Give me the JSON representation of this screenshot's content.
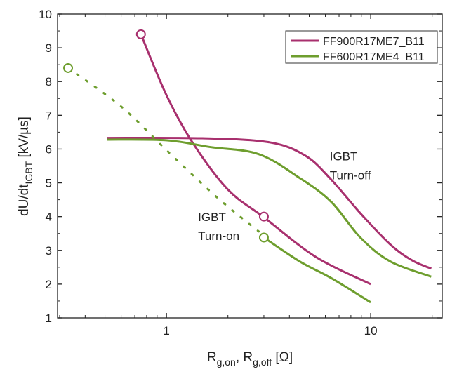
{
  "chart_data": {
    "type": "line",
    "xscale": "log",
    "xlim": [
      0.293,
      22.4
    ],
    "ylim": [
      1,
      10
    ],
    "xticks": [
      {
        "v": 1,
        "label": "1"
      },
      {
        "v": 10,
        "label": "10"
      }
    ],
    "yticks": [
      1,
      2,
      3,
      4,
      5,
      6,
      7,
      8,
      9,
      10
    ],
    "xlabel": {
      "main": "R",
      "sub1": "g,on",
      "sep": ", R",
      "sub2": "g,off",
      "unit": " [Ω]"
    },
    "ylabel": {
      "main": "dU/dt",
      "sub": "IGBT",
      "unit": " [kV/µs]"
    },
    "legend_position": "top-right",
    "legend": [
      {
        "name": "FF900R17ME7_B11",
        "color": "#A8306E"
      },
      {
        "name": "FF600R17ME4_B11",
        "color": "#6E9E2E"
      }
    ],
    "annotations": [
      {
        "line1": "IGBT",
        "line2": "Turn-off",
        "x": 7.5,
        "y": 5.5
      },
      {
        "line1": "IGBT",
        "line2": "Turn-on",
        "x": 1.7,
        "y": 3.7
      }
    ],
    "series": [
      {
        "name": "FF900R17ME7_B11 turn-on",
        "color": "#A8306E",
        "style": "solid",
        "marker_start": true,
        "marker_at": [
          3,
          4
        ],
        "points": [
          [
            0.75,
            9.4
          ],
          [
            1.0,
            7.6
          ],
          [
            1.34,
            6.2
          ],
          [
            2.0,
            4.8
          ],
          [
            3.0,
            3.98
          ],
          [
            5.4,
            2.8
          ],
          [
            10,
            2.0
          ]
        ]
      },
      {
        "name": "FF900R17ME7_B11 turn-off",
        "color": "#A8306E",
        "style": "solid",
        "points": [
          [
            0.51,
            6.33
          ],
          [
            1.5,
            6.32
          ],
          [
            3.2,
            6.2
          ],
          [
            4.8,
            5.8
          ],
          [
            6.4,
            5.1
          ],
          [
            8.9,
            4.1
          ],
          [
            12.5,
            3.17
          ],
          [
            16,
            2.7
          ],
          [
            19.8,
            2.46
          ]
        ]
      },
      {
        "name": "FF600R17ME4_B11 turn-off",
        "color": "#6E9E2E",
        "style": "solid",
        "points": [
          [
            0.51,
            6.28
          ],
          [
            1.0,
            6.26
          ],
          [
            1.64,
            6.06
          ],
          [
            2.83,
            5.85
          ],
          [
            4.5,
            5.14
          ],
          [
            6.4,
            4.44
          ],
          [
            8.9,
            3.38
          ],
          [
            12.5,
            2.67
          ],
          [
            19.8,
            2.22
          ]
        ]
      },
      {
        "name": "FF600R17ME4_B11 turn-on",
        "color": "#6E9E2E",
        "style": "solid",
        "marker_start": true,
        "points": [
          [
            3.0,
            3.38
          ],
          [
            4.5,
            2.67
          ],
          [
            6.4,
            2.18
          ],
          [
            10,
            1.46
          ]
        ]
      },
      {
        "name": "FF600R17ME4_B11 turn-on (extrapolated)",
        "color": "#6E9E2E",
        "style": "dotted",
        "marker_start": true,
        "points": [
          [
            0.33,
            8.4
          ],
          [
            0.6,
            7.26
          ],
          [
            1.02,
            5.92
          ],
          [
            1.76,
            4.58
          ],
          [
            2.83,
            3.56
          ]
        ]
      }
    ]
  }
}
